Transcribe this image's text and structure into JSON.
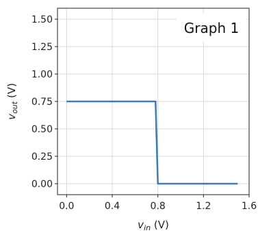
{
  "chart_data": {
    "type": "line",
    "annotation": "Graph 1",
    "xlabel_main": "v",
    "xlabel_sub": "in",
    "xlabel_unit": " (V)",
    "ylabel_main": "v",
    "ylabel_sub": "out",
    "ylabel_unit": " (V)",
    "xlim": [
      -0.08,
      1.6
    ],
    "ylim": [
      -0.1,
      1.6
    ],
    "xticks": [
      0.0,
      0.4,
      0.8,
      1.2,
      1.6
    ],
    "xtick_labels": [
      "0.0",
      "0.4",
      "0.8",
      "1.2",
      "1.6"
    ],
    "yticks": [
      0.0,
      0.25,
      0.5,
      0.75,
      1.0,
      1.25,
      1.5
    ],
    "ytick_labels": [
      "0.00",
      "0.25",
      "0.50",
      "0.75",
      "1.00",
      "1.25",
      "1.50"
    ],
    "grid": true,
    "line_color": "#3a7bb8",
    "series": [
      {
        "x": [
          0.0,
          0.78,
          0.8,
          1.5
        ],
        "y": [
          0.75,
          0.75,
          0.0,
          0.0
        ]
      }
    ]
  }
}
